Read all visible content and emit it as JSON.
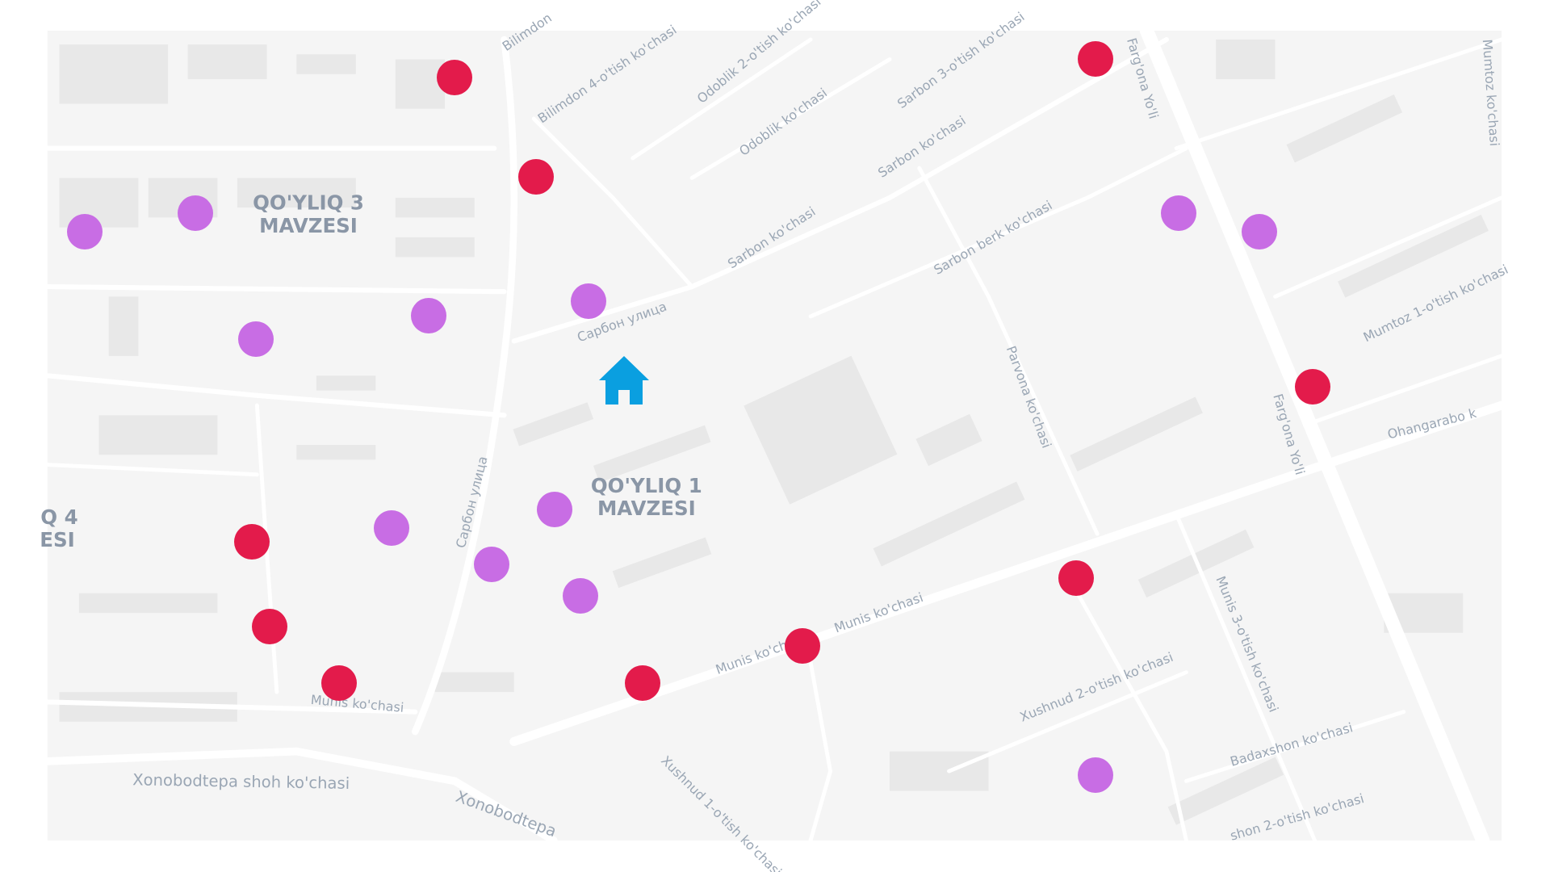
{
  "map": {
    "colors": {
      "background": "#f5f5f5",
      "road": "#ffffff",
      "building": "#e8e8e8",
      "label": "#9aa6b4",
      "red_marker": "#e31b4b",
      "purple_marker": "#c86de4",
      "home_marker": "#0a9fe0"
    },
    "districts": [
      {
        "line1": "QO'YLIQ 3",
        "line2": "MAVZESI"
      },
      {
        "line1": "QO'YLIQ 1",
        "line2": "MAVZESI"
      },
      {
        "line1": "Q 4",
        "line2": "ESI"
      }
    ],
    "streets": [
      "Bilimdon 4-o'tish ko'chasi",
      "Odoblik 2-o'tish ko'chasi",
      "Odoblik ko'chasi",
      "Sarbon 3-o'tish ko'chasi",
      "Sarbon ko'chasi",
      "Sarbon ko'chasi",
      "Sarbon berk ko'chasi",
      "Farg'ona Yo'li",
      "Farg'ona Yo'li",
      "Mumtoz ko'chasi",
      "Mumtoz 1-o'tish ko'chasi",
      "Ohangarabo k",
      "Сарбон улица",
      "Сарбон улица",
      "Parvona ko'chasi",
      "Munis ko'chasi",
      "Munis ko'chasi",
      "Munis ko'chasi",
      "Munis 3-o'tish ko'chasi",
      "Xonobodtepa shoh ko'chasi",
      "Xonobodtepa",
      "Xushnud 1-o'tish ko'chasi",
      "Xushnud 2-o'tish ko'chasi",
      "Badaxshon ko'chasi",
      "shon 2-o'tish ko'chasi",
      "Bilimdon"
    ],
    "markers": {
      "red_count": 10,
      "purple_count": 12,
      "home_icon": "home-icon"
    }
  }
}
